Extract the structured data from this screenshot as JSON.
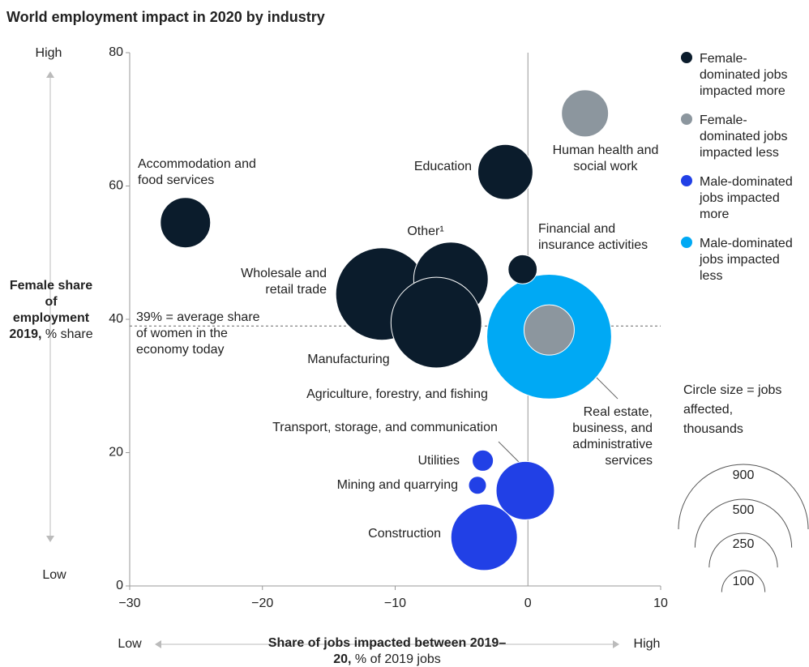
{
  "chart_data": {
    "type": "bubble",
    "title": "World employment impact in 2020 by industry",
    "x_label_bold": "Share of jobs impacted between 2019–20,",
    "x_label": "% of 2019 jobs",
    "x_low": "Low",
    "x_high": "High",
    "y_label_bold": "Female share of employment 2019,",
    "y_label": "% share",
    "y_low": "Low",
    "y_high": "High",
    "xlim": [
      -30,
      10
    ],
    "xticks": [
      {
        "value": -30,
        "label": "−30"
      },
      {
        "value": -20,
        "label": "−20"
      },
      {
        "value": -10,
        "label": "−10"
      },
      0,
      10
    ],
    "ylim": [
      0,
      80
    ],
    "yticks": [
      0,
      20,
      40,
      60,
      80
    ],
    "reference_line": 39,
    "reference_label": "39% = average share of women in the economy today",
    "size_legend": {
      "title": "Circle size = jobs affected, thousands",
      "values": [
        900,
        500,
        250,
        100
      ]
    },
    "series": [
      {
        "name": "Female-dominated jobs impacted more",
        "color": "#0b1c2c",
        "points": [
          {
            "label": "Accommodation and food services",
            "x": -25.8,
            "y": 54.5,
            "size": 135
          },
          {
            "label": "Education",
            "x": -1.7,
            "y": 62.1,
            "size": 162
          },
          {
            "label": "Financial and insurance activities",
            "x": -0.4,
            "y": 47.5,
            "size": 45
          },
          {
            "label": "Wholesale and retail trade",
            "x": -11.0,
            "y": 43.8,
            "size": 456
          },
          {
            "label": "Other¹",
            "x": -5.8,
            "y": 46.0,
            "size": 297
          },
          {
            "label": "Manufacturing",
            "x": -6.9,
            "y": 39.5,
            "size": 440
          }
        ]
      },
      {
        "name": "Female-dominated jobs impacted less",
        "color": "#8c969e",
        "points": [
          {
            "label": "Human health and social work",
            "x": 4.3,
            "y": 70.9,
            "size": 118
          },
          {
            "label": "Real estate, business, and administrative services",
            "x": 1.6,
            "y": 38.4,
            "size": 135
          }
        ]
      },
      {
        "name": "Male-dominated jobs impacted more",
        "color": "#2140e6",
        "points": [
          {
            "label": "Utilities",
            "x": -3.4,
            "y": 18.8,
            "size": 24
          },
          {
            "label": "Mining and quarrying",
            "x": -3.8,
            "y": 15.1,
            "size": 17
          },
          {
            "label": "Transport, storage, and communication",
            "x": -0.2,
            "y": 14.3,
            "size": 182
          },
          {
            "label": "Construction",
            "x": -3.3,
            "y": 7.3,
            "size": 236
          }
        ]
      },
      {
        "name": "Male-dominated jobs impacted less",
        "color": "#00a9f4",
        "points": [
          {
            "label": "Agriculture, forestry, and fishing",
            "x": 1.6,
            "y": 37.4,
            "size": 832
          }
        ]
      }
    ]
  }
}
